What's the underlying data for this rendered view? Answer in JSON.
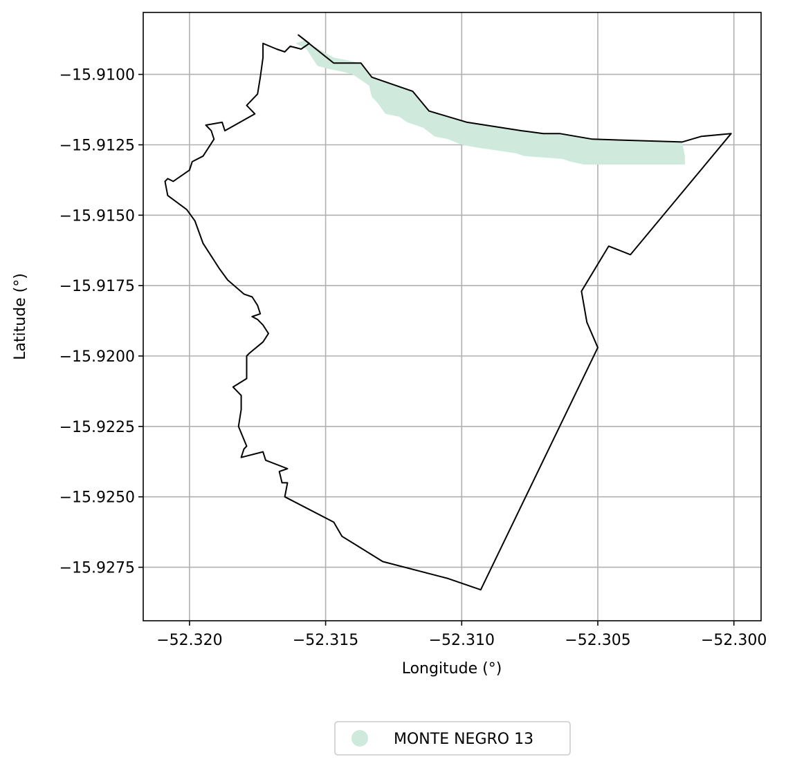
{
  "chart_data": {
    "type": "map",
    "xlabel": "Longitude (°)",
    "ylabel": "Latitude (°)",
    "xlim": [
      -52.3217,
      -52.299
    ],
    "ylim": [
      -15.9294,
      -15.9078
    ],
    "xticks": [
      -52.32,
      -52.315,
      -52.31,
      -52.305,
      -52.3
    ],
    "xtick_labels": [
      "−52.320",
      "−52.315",
      "−52.310",
      "−52.305",
      "−52.300"
    ],
    "yticks": [
      -15.91,
      -15.9125,
      -15.915,
      -15.9175,
      -15.92,
      -15.9225,
      -15.925,
      -15.9275
    ],
    "ytick_labels": [
      "−15.9100",
      "−15.9125",
      "−15.9150",
      "−15.9175",
      "−15.9200",
      "−15.9225",
      "−15.9250",
      "−15.9275"
    ],
    "grid": true,
    "boundary_color": "#000000",
    "legend_position": "bottom-center",
    "boundary": [
      [
        -52.316,
        -15.9086
      ],
      [
        -52.3156,
        -15.9089
      ],
      [
        -52.3159,
        -15.9091
      ],
      [
        -52.3163,
        -15.909
      ],
      [
        -52.3165,
        -15.9092
      ],
      [
        -52.3168,
        -15.9091
      ],
      [
        -52.3173,
        -15.9089
      ],
      [
        -52.3173,
        -15.9094
      ],
      [
        -52.3174,
        -15.9101
      ],
      [
        -52.3175,
        -15.9107
      ],
      [
        -52.3179,
        -15.9111
      ],
      [
        -52.3176,
        -15.9114
      ],
      [
        -52.3187,
        -15.912
      ],
      [
        -52.3188,
        -15.9117
      ],
      [
        -52.3194,
        -15.9118
      ],
      [
        -52.3192,
        -15.912
      ],
      [
        -52.3191,
        -15.9123
      ],
      [
        -52.3195,
        -15.9129
      ],
      [
        -52.3199,
        -15.9131
      ],
      [
        -52.32,
        -15.9134
      ],
      [
        -52.3206,
        -15.9138
      ],
      [
        -52.3208,
        -15.9137
      ],
      [
        -52.3209,
        -15.9138
      ],
      [
        -52.3208,
        -15.9143
      ],
      [
        -52.3201,
        -15.9148
      ],
      [
        -52.3198,
        -15.9152
      ],
      [
        -52.3195,
        -15.916
      ],
      [
        -52.3189,
        -15.9169
      ],
      [
        -52.3186,
        -15.9173
      ],
      [
        -52.318,
        -15.9178
      ],
      [
        -52.3177,
        -15.9179
      ],
      [
        -52.3175,
        -15.9182
      ],
      [
        -52.3174,
        -15.9185
      ],
      [
        -52.3177,
        -15.9186
      ],
      [
        -52.3175,
        -15.9187
      ],
      [
        -52.3173,
        -15.9189
      ],
      [
        -52.3171,
        -15.9192
      ],
      [
        -52.3173,
        -15.9195
      ],
      [
        -52.3178,
        -15.9199
      ],
      [
        -52.3179,
        -15.92
      ],
      [
        -52.3179,
        -15.9208
      ],
      [
        -52.3184,
        -15.9211
      ],
      [
        -52.3181,
        -15.9214
      ],
      [
        -52.3181,
        -15.9219
      ],
      [
        -52.3182,
        -15.9225
      ],
      [
        -52.3179,
        -15.9232
      ],
      [
        -52.318,
        -15.9233
      ],
      [
        -52.3181,
        -15.9236
      ],
      [
        -52.3173,
        -15.9234
      ],
      [
        -52.3172,
        -15.9237
      ],
      [
        -52.3164,
        -15.924
      ],
      [
        -52.3167,
        -15.9241
      ],
      [
        -52.3166,
        -15.9245
      ],
      [
        -52.3164,
        -15.9245
      ],
      [
        -52.3165,
        -15.925
      ],
      [
        -52.3147,
        -15.9259
      ],
      [
        -52.3144,
        -15.9264
      ],
      [
        -52.3129,
        -15.9273
      ],
      [
        -52.3105,
        -15.9279
      ],
      [
        -52.3093,
        -15.9283
      ],
      [
        -52.305,
        -15.9197
      ],
      [
        -52.3054,
        -15.9188
      ],
      [
        -52.3056,
        -15.9177
      ],
      [
        -52.3046,
        -15.9161
      ],
      [
        -52.3038,
        -15.9164
      ],
      [
        -52.3001,
        -15.9121
      ],
      [
        -52.3012,
        -15.9122
      ],
      [
        -52.3019,
        -15.9124
      ],
      [
        -52.3052,
        -15.9123
      ],
      [
        -52.3064,
        -15.9121
      ],
      [
        -52.307,
        -15.9121
      ],
      [
        -52.3078,
        -15.912
      ],
      [
        -52.3098,
        -15.9117
      ],
      [
        -52.3112,
        -15.9113
      ],
      [
        -52.3118,
        -15.9106
      ],
      [
        -52.3133,
        -15.9101
      ],
      [
        -52.3137,
        -15.9096
      ],
      [
        -52.3147,
        -15.9096
      ],
      [
        -52.316,
        -15.9086
      ]
    ],
    "series": [
      {
        "name": "MONTE NEGRO 13",
        "color": "#cfeadc",
        "polygon": [
          [
            -52.3158,
            -15.9088
          ],
          [
            -52.3147,
            -15.9094
          ],
          [
            -52.3137,
            -15.9096
          ],
          [
            -52.3133,
            -15.9101
          ],
          [
            -52.3118,
            -15.9106
          ],
          [
            -52.3112,
            -15.9113
          ],
          [
            -52.3098,
            -15.9117
          ],
          [
            -52.3078,
            -15.912
          ],
          [
            -52.307,
            -15.9121
          ],
          [
            -52.3064,
            -15.9121
          ],
          [
            -52.3052,
            -15.9123
          ],
          [
            -52.3019,
            -15.9124
          ],
          [
            -52.3018,
            -15.9129
          ],
          [
            -52.3018,
            -15.9132
          ],
          [
            -52.3055,
            -15.9132
          ],
          [
            -52.306,
            -15.9131
          ],
          [
            -52.3063,
            -15.913
          ],
          [
            -52.3077,
            -15.9129
          ],
          [
            -52.308,
            -15.9128
          ],
          [
            -52.3094,
            -15.9126
          ],
          [
            -52.31,
            -15.9125
          ],
          [
            -52.3105,
            -15.9123
          ],
          [
            -52.311,
            -15.9122
          ],
          [
            -52.3114,
            -15.9119
          ],
          [
            -52.312,
            -15.9117
          ],
          [
            -52.3123,
            -15.9115
          ],
          [
            -52.3128,
            -15.9114
          ],
          [
            -52.3131,
            -15.911
          ],
          [
            -52.3133,
            -15.9108
          ],
          [
            -52.3134,
            -15.9104
          ],
          [
            -52.3137,
            -15.9102
          ],
          [
            -52.314,
            -15.91
          ],
          [
            -52.3144,
            -15.9099
          ],
          [
            -52.3149,
            -15.9098
          ],
          [
            -52.3153,
            -15.9097
          ],
          [
            -52.3155,
            -15.9094
          ],
          [
            -52.3157,
            -15.9091
          ],
          [
            -52.3161,
            -15.9089
          ]
        ]
      }
    ]
  }
}
